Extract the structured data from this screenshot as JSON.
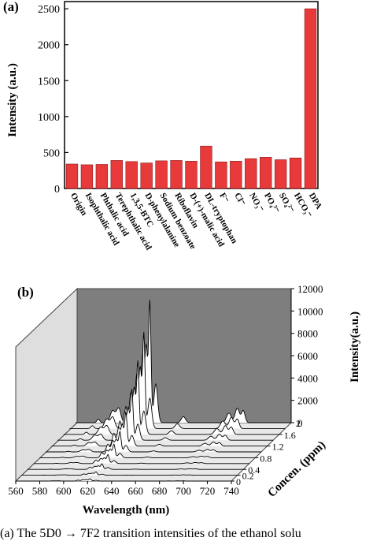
{
  "colors": {
    "bar": "#e83a3a",
    "bar_edge": "#8b1a1a",
    "back_wall": "#7e7e7e",
    "side_wall": "#dedede",
    "floor": "#e9e9e9"
  },
  "caption": "(a) The 5D0 → 7F2 transition intensities of the ethanol solu",
  "chart_data": [
    {
      "panel_label": "(a)",
      "type": "bar",
      "ylabel": "Intensity (a.u.)",
      "ylim": [
        0,
        2600
      ],
      "yticks": [
        0,
        500,
        1000,
        1500,
        2000,
        2500
      ],
      "categories": [
        "Origin",
        "Isophthalic acid",
        "Phthalic acid",
        "Terephthalic acid",
        "1,3,5-BTC",
        "D-phenylalanine",
        "Sodium benzoate",
        "Riboflavin",
        "D-(+)-malic acid",
        "DL-tryptophan",
        "F⁻",
        "Cl⁻",
        "NO₃⁻",
        "PO₄³⁻",
        "SO₄²⁻",
        "HCO₃⁻",
        "DPA"
      ],
      "values": [
        340,
        330,
        335,
        390,
        375,
        355,
        385,
        390,
        380,
        590,
        370,
        380,
        415,
        435,
        400,
        425,
        2500
      ]
    },
    {
      "panel_label": "(b)",
      "type": "line",
      "xlabel": "Wavelength (nm)",
      "ylabel": "Concen. (ppm)",
      "zlabel": "Intensity(a.u.)",
      "xticks": [
        560,
        580,
        600,
        620,
        640,
        660,
        680,
        700,
        720,
        740
      ],
      "yticks": [
        "0",
        "0.2",
        "0.4",
        "0.8",
        "1.2",
        "1.6",
        "2"
      ],
      "zticks": [
        0,
        2000,
        4000,
        6000,
        8000,
        10000,
        12000
      ],
      "zlim": [
        0,
        12000
      ],
      "series": [
        {
          "concentration": 0,
          "peak_intensity": 200
        },
        {
          "concentration": 0.2,
          "peak_intensity": 300
        },
        {
          "concentration": 0.4,
          "peak_intensity": 500
        },
        {
          "concentration": 0.6,
          "peak_intensity": 800
        },
        {
          "concentration": 0.8,
          "peak_intensity": 1200
        },
        {
          "concentration": 1.0,
          "peak_intensity": 1800
        },
        {
          "concentration": 1.2,
          "peak_intensity": 3000
        },
        {
          "concentration": 1.4,
          "peak_intensity": 4500
        },
        {
          "concentration": 1.6,
          "peak_intensity": 6500
        },
        {
          "concentration": 1.8,
          "peak_intensity": 8500
        },
        {
          "concentration": 2.0,
          "peak_intensity": 10800
        }
      ]
    }
  ]
}
